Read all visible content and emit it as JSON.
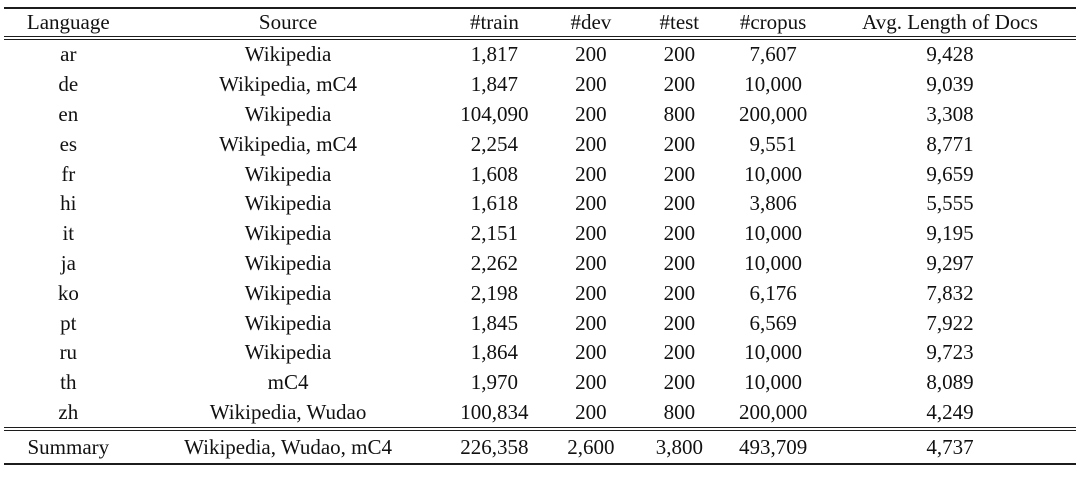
{
  "table": {
    "columns": [
      "Language",
      "Source",
      "#train",
      "#dev",
      "#test",
      "#cropus",
      "Avg. Length of Docs"
    ],
    "rows": [
      [
        "ar",
        "Wikipedia",
        "1,817",
        "200",
        "200",
        "7,607",
        "9,428"
      ],
      [
        "de",
        "Wikipedia, mC4",
        "1,847",
        "200",
        "200",
        "10,000",
        "9,039"
      ],
      [
        "en",
        "Wikipedia",
        "104,090",
        "200",
        "800",
        "200,000",
        "3,308"
      ],
      [
        "es",
        "Wikipedia, mC4",
        "2,254",
        "200",
        "200",
        "9,551",
        "8,771"
      ],
      [
        "fr",
        "Wikipedia",
        "1,608",
        "200",
        "200",
        "10,000",
        "9,659"
      ],
      [
        "hi",
        "Wikipedia",
        "1,618",
        "200",
        "200",
        "3,806",
        "5,555"
      ],
      [
        "it",
        "Wikipedia",
        "2,151",
        "200",
        "200",
        "10,000",
        "9,195"
      ],
      [
        "ja",
        "Wikipedia",
        "2,262",
        "200",
        "200",
        "10,000",
        "9,297"
      ],
      [
        "ko",
        "Wikipedia",
        "2,198",
        "200",
        "200",
        "6,176",
        "7,832"
      ],
      [
        "pt",
        "Wikipedia",
        "1,845",
        "200",
        "200",
        "6,569",
        "7,922"
      ],
      [
        "ru",
        "Wikipedia",
        "1,864",
        "200",
        "200",
        "10,000",
        "9,723"
      ],
      [
        "th",
        "mC4",
        "1,970",
        "200",
        "200",
        "10,000",
        "8,089"
      ],
      [
        "zh",
        "Wikipedia, Wudao",
        "100,834",
        "200",
        "800",
        "200,000",
        "4,249"
      ]
    ],
    "summary": [
      "Summary",
      "Wikipedia, Wudao, mC4",
      "226,358",
      "2,600",
      "3,800",
      "493,709",
      "4,737"
    ]
  },
  "colors": {
    "text": "#111111",
    "rule": "#1c1c1c",
    "background": "#ffffff"
  }
}
